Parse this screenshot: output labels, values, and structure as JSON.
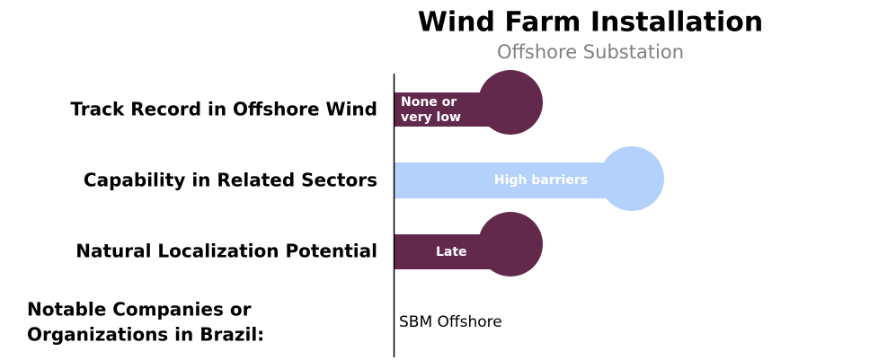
{
  "header": {
    "title": "Wind Farm Installation",
    "subtitle": "Offshore Substation"
  },
  "rows": [
    {
      "label": "Track Record in Offshore Wind",
      "rating": [
        "None or",
        "very low"
      ]
    },
    {
      "label": "Capability in Related Sectors",
      "rating": [
        "High barriers"
      ]
    },
    {
      "label": "Natural Localization Potential",
      "rating": [
        "Late"
      ]
    }
  ],
  "companies": {
    "label": [
      "Notable Companies or",
      "Organizations in Brazil:"
    ],
    "value": "SBM Offshore"
  }
}
